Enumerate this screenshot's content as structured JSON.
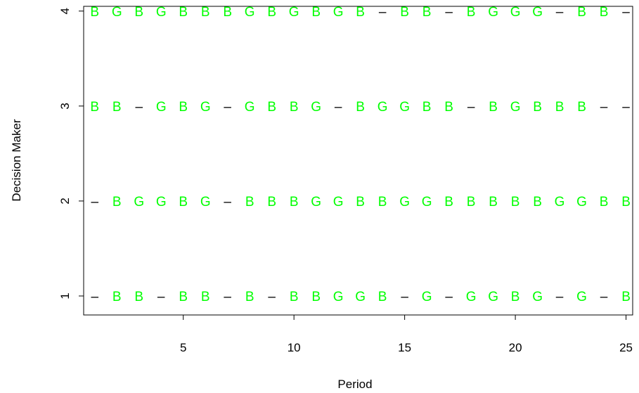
{
  "chart_data": {
    "type": "scatter",
    "xlabel": "Period",
    "ylabel": "Decision Maker",
    "xlim": [
      0.5,
      25.3
    ],
    "ylim": [
      0.8,
      4.05
    ],
    "x_ticks": [
      5,
      10,
      15,
      20,
      25
    ],
    "y_ticks": [
      1,
      2,
      3,
      4
    ],
    "grid": false,
    "legend": "none",
    "colors": {
      "B": "#00ff00",
      "G": "#00ff00",
      "–": "#000000"
    },
    "periods": [
      1,
      2,
      3,
      4,
      5,
      6,
      7,
      8,
      9,
      10,
      11,
      12,
      13,
      14,
      15,
      16,
      17,
      18,
      19,
      20,
      21,
      22,
      23,
      24,
      25
    ],
    "series": [
      {
        "decision_maker": 1,
        "values": [
          "–",
          "B",
          "B",
          "–",
          "B",
          "B",
          "–",
          "B",
          "–",
          "B",
          "B",
          "G",
          "G",
          "B",
          "–",
          "G",
          "–",
          "G",
          "G",
          "B",
          "G",
          "–",
          "G",
          "–",
          "B"
        ]
      },
      {
        "decision_maker": 2,
        "values": [
          "–",
          "B",
          "G",
          "G",
          "B",
          "G",
          "–",
          "B",
          "B",
          "B",
          "G",
          "G",
          "B",
          "B",
          "G",
          "G",
          "B",
          "B",
          "B",
          "B",
          "B",
          "G",
          "G",
          "B",
          "B"
        ]
      },
      {
        "decision_maker": 3,
        "values": [
          "B",
          "B",
          "–",
          "G",
          "B",
          "G",
          "–",
          "G",
          "B",
          "B",
          "G",
          "–",
          "B",
          "G",
          "G",
          "B",
          "B",
          "–",
          "B",
          "G",
          "B",
          "B",
          "B",
          "–",
          "–"
        ]
      },
      {
        "decision_maker": 4,
        "values": [
          "B",
          "G",
          "B",
          "G",
          "B",
          "B",
          "B",
          "G",
          "B",
          "G",
          "B",
          "G",
          "B",
          "–",
          "B",
          "B",
          "–",
          "B",
          "G",
          "G",
          "G",
          "–",
          "B",
          "B",
          "–"
        ]
      }
    ]
  }
}
